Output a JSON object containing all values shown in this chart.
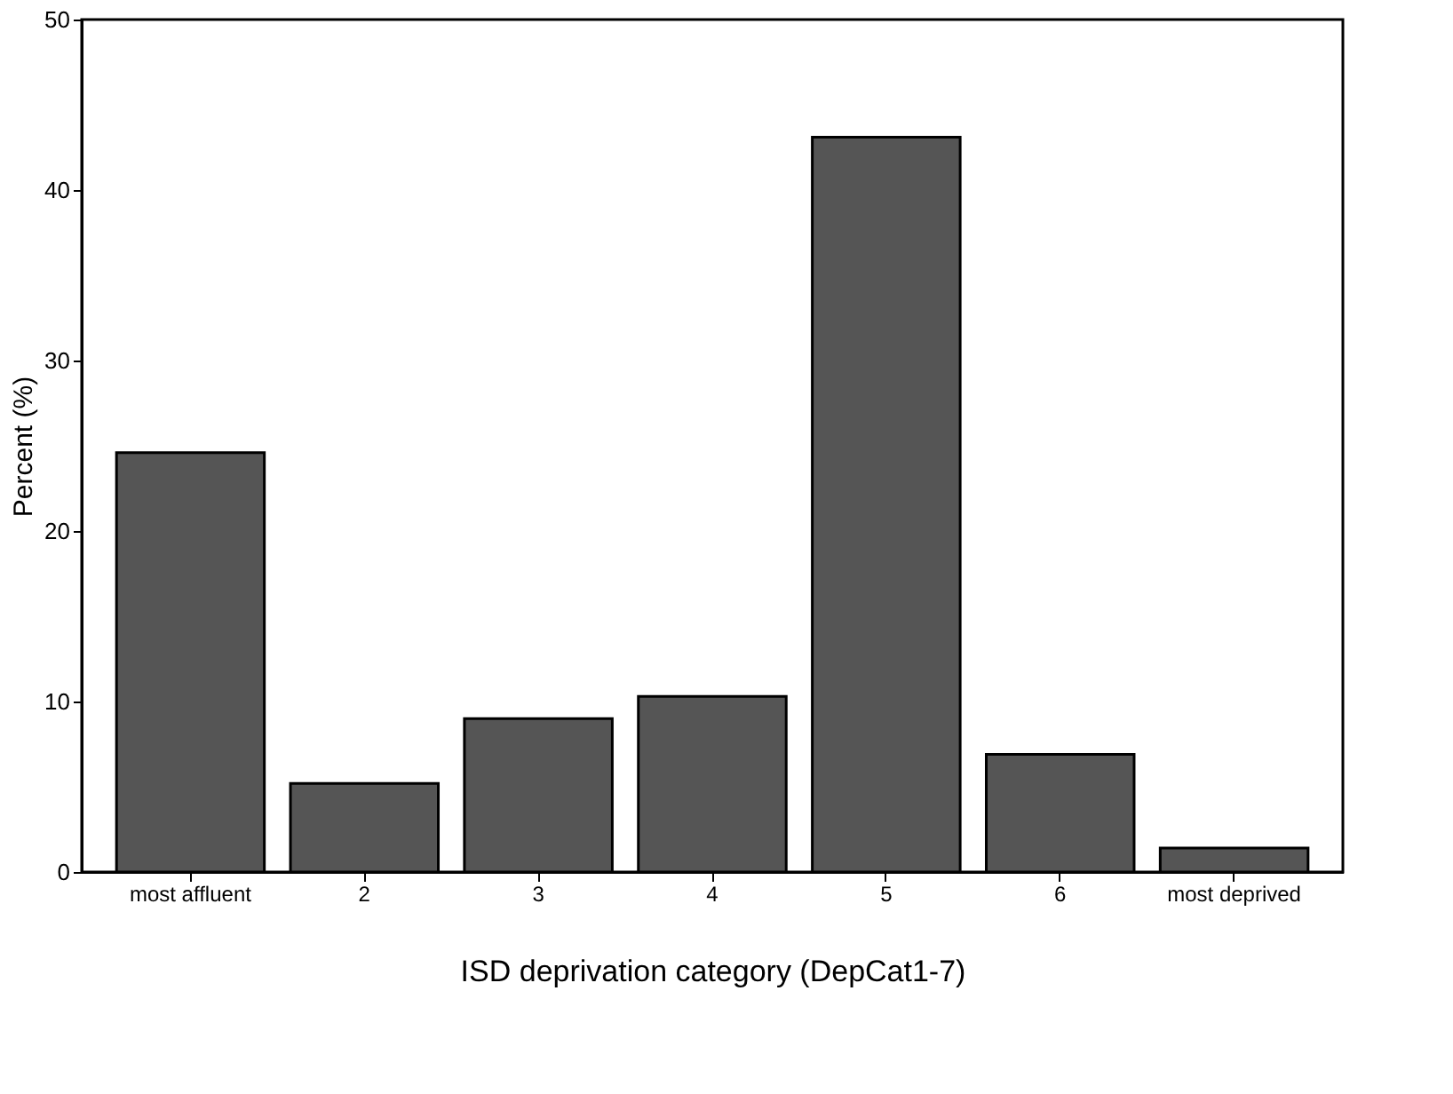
{
  "chart_data": {
    "type": "bar",
    "xlabel": "ISD deprivation category (DepCat1-7)",
    "ylabel": "Percent (%)",
    "categories": [
      "most affluent",
      "2",
      "3",
      "4",
      "5",
      "6",
      "most deprived"
    ],
    "values": [
      24.6,
      5.2,
      9.0,
      10.3,
      43.1,
      6.9,
      1.4
    ],
    "color": "#555555",
    "ylim": [
      0,
      50
    ],
    "yticks": [
      0,
      10,
      20,
      30,
      40,
      50
    ],
    "grid": false
  }
}
